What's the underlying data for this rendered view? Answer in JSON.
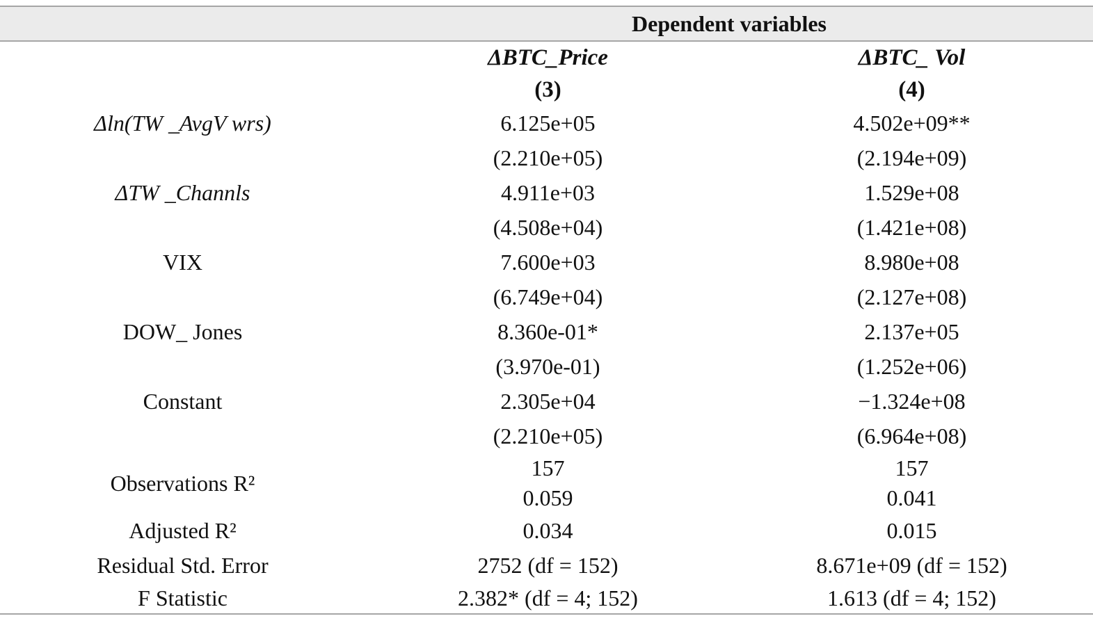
{
  "table": {
    "band_title": "Dependent variables",
    "columns": [
      {
        "name": "ΔBTC_Price",
        "number": "(3)"
      },
      {
        "name": "ΔBTC_ Vol",
        "number": "(4)"
      }
    ],
    "coefficients": [
      {
        "label": "Δln(TW _AvgV wrs)",
        "values": [
          "6.125e+05",
          "4.502e+09**"
        ],
        "std_errors": [
          "(2.210e+05)",
          "(2.194e+09)"
        ]
      },
      {
        "label": "ΔTW _Channls",
        "values": [
          "4.911e+03",
          "1.529e+08"
        ],
        "std_errors": [
          "(4.508e+04)",
          "(1.421e+08)"
        ]
      },
      {
        "label": "VIX",
        "values": [
          "7.600e+03",
          "8.980e+08"
        ],
        "std_errors": [
          "(6.749e+04)",
          "(2.127e+08)"
        ]
      },
      {
        "label": "DOW_ Jones",
        "values": [
          "8.360e-01*",
          "2.137e+05"
        ],
        "std_errors": [
          "(3.970e-01)",
          "(1.252e+06)"
        ]
      },
      {
        "label": "Constant",
        "values": [
          "2.305e+04",
          "−1.324e+08"
        ],
        "std_errors": [
          "(2.210e+05)",
          "(6.964e+08)"
        ]
      }
    ],
    "stats": {
      "observations_r2": {
        "label": "Observations R²",
        "col3": [
          "157",
          "0.059"
        ],
        "col4": [
          "157",
          "0.041"
        ]
      },
      "adjusted_r2": {
        "label": "Adjusted R²",
        "values": [
          "0.034",
          "0.015"
        ]
      },
      "residual_std_error": {
        "label": "Residual Std. Error",
        "values": [
          "2752 (df = 152)",
          "8.671e+09 (df = 152)"
        ]
      },
      "f_statistic": {
        "label": "F Statistic",
        "values": [
          "2.382* (df = 4; 152)",
          "1.613 (df = 4; 152)"
        ]
      }
    },
    "colors": {
      "band_background": "#ebebeb",
      "rule": "#a6a6a6",
      "text": "#111111"
    }
  }
}
